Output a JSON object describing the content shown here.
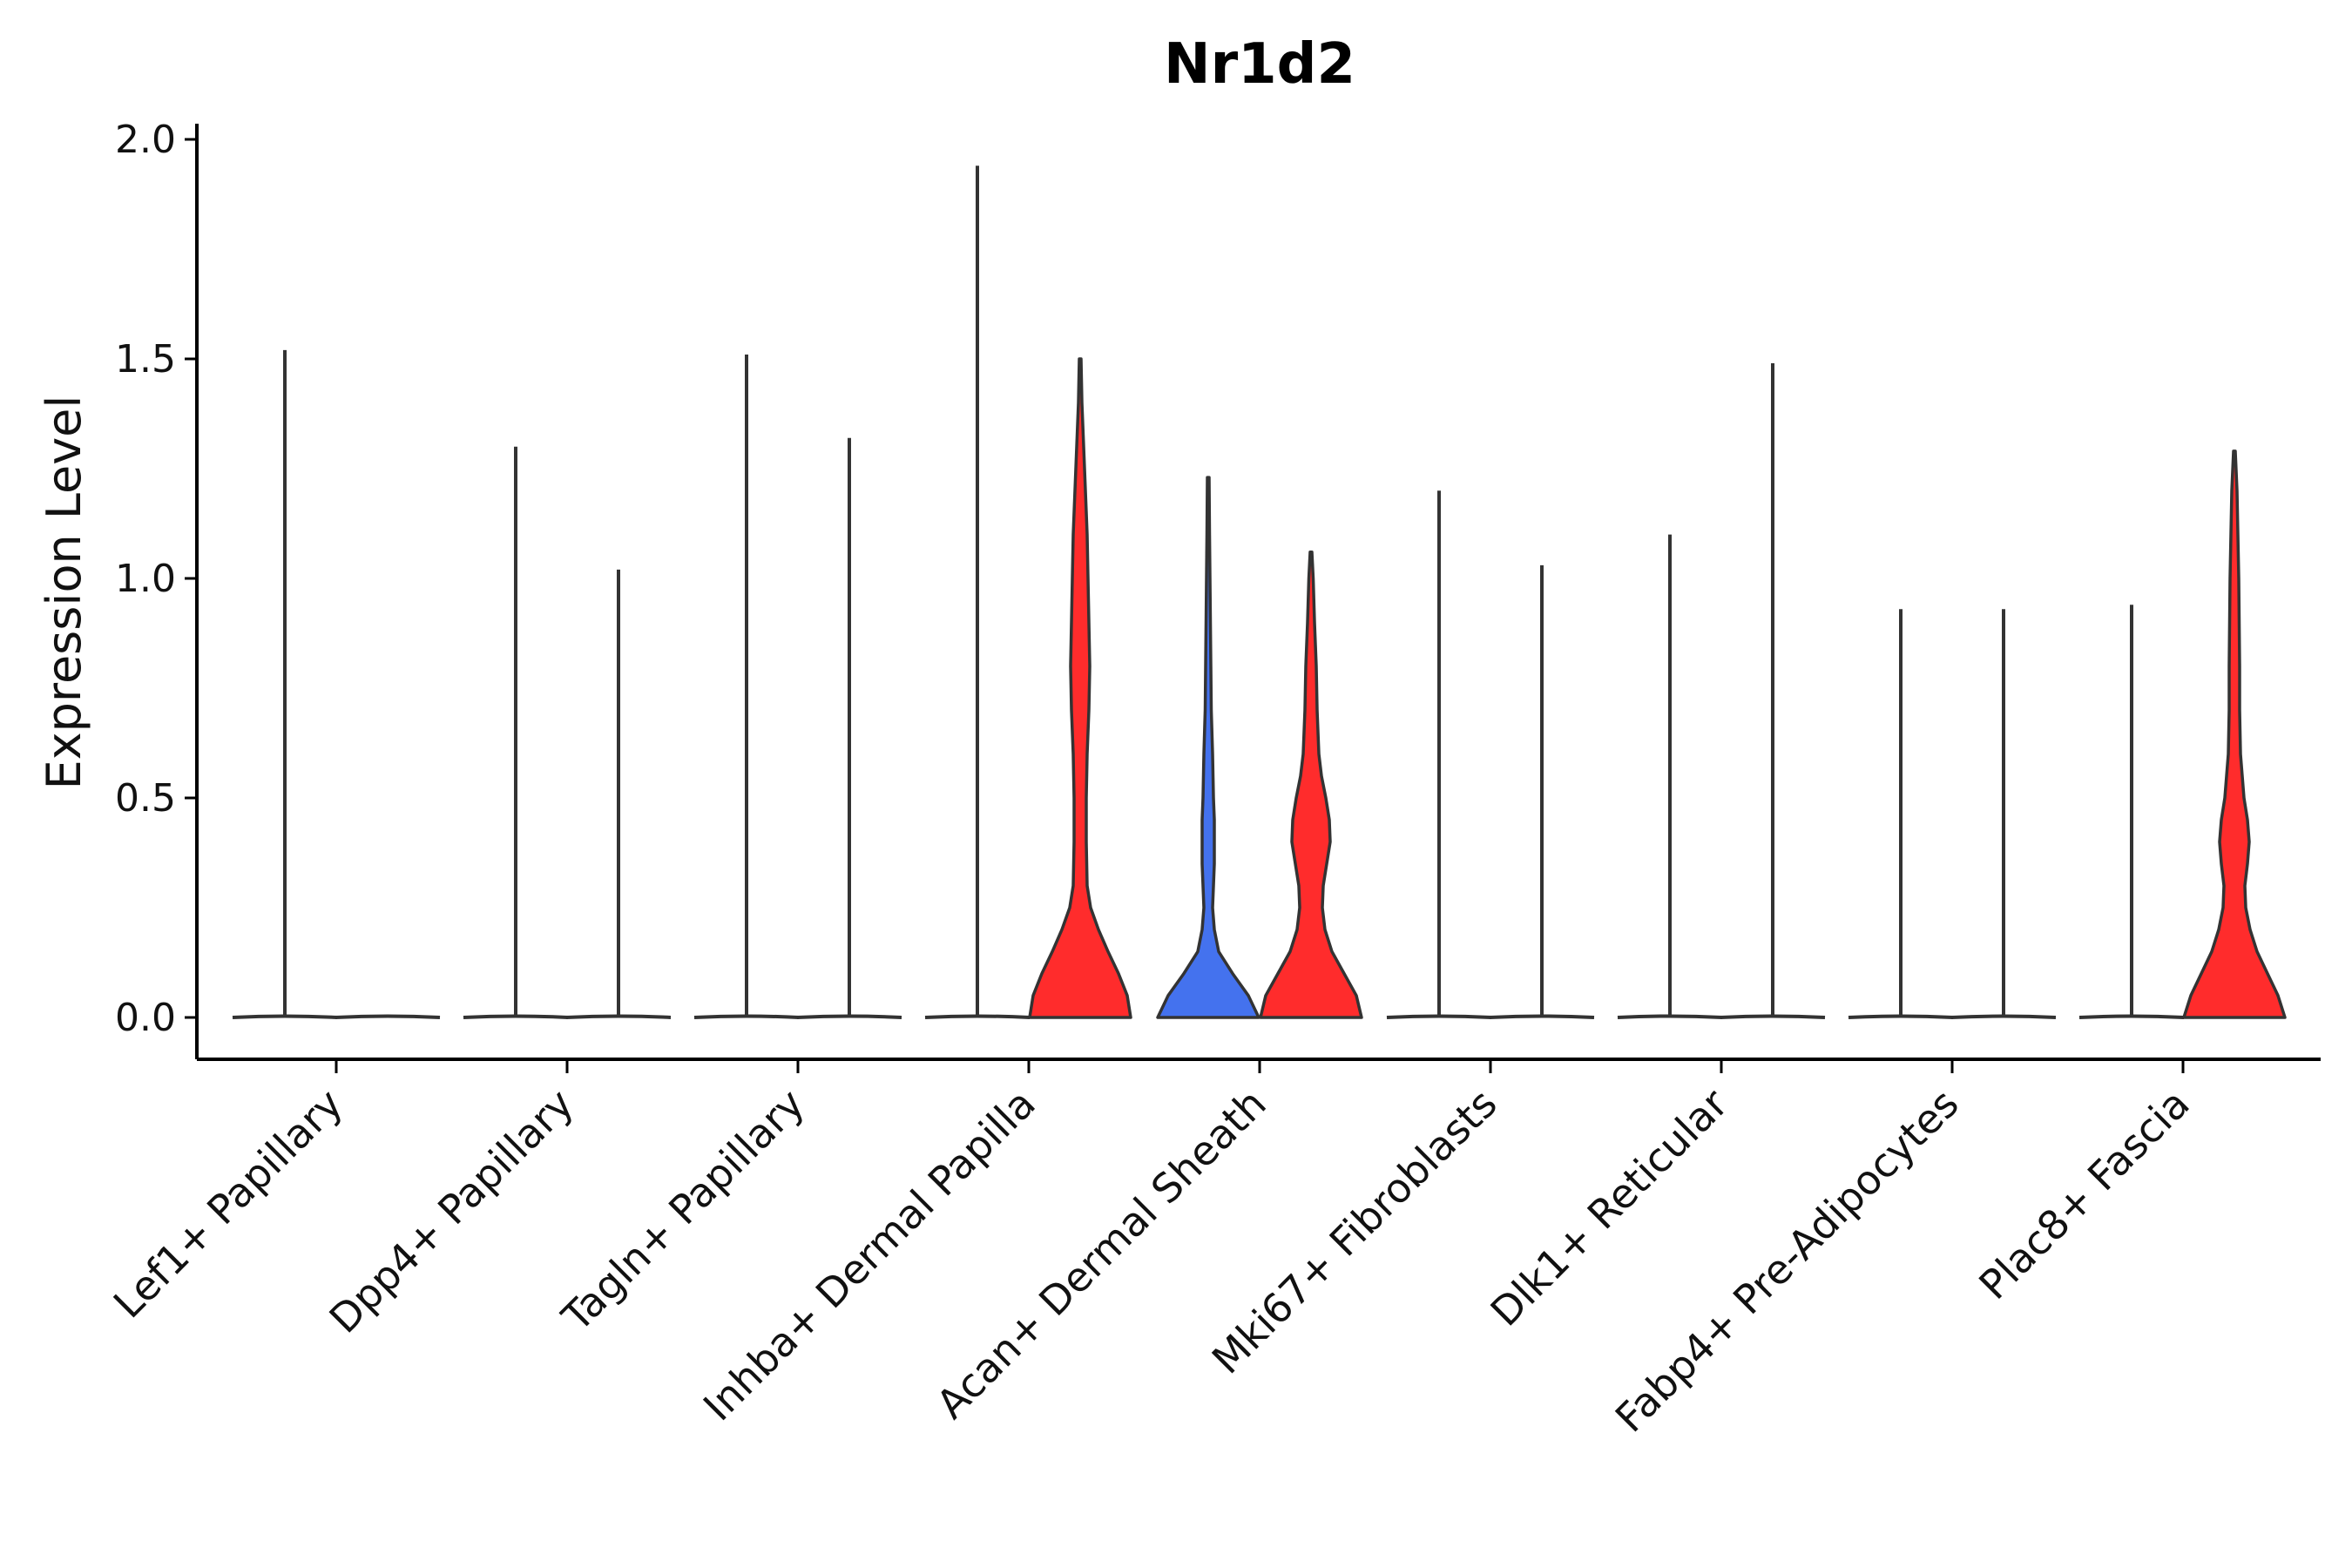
{
  "chart_data": {
    "type": "violin",
    "title": "Nr1d2",
    "xlabel": "",
    "ylabel": "Expression Level",
    "ylim": [
      -0.1,
      2.05
    ],
    "yticks": [
      0.0,
      0.5,
      1.0,
      1.5,
      2.0
    ],
    "ytick_labels": [
      "0.0",
      "0.5",
      "1.0",
      "1.5",
      "2.0"
    ],
    "categories": [
      "Lef1+ Papillary",
      "Dpp4+ Papillary",
      "Tagln+ Papillary",
      "Inhba+ Dermal Papilla",
      "Acan+ Dermal Sheath",
      "Mki67+ Fibroblasts",
      "Dlk1+ Reticular",
      "Fabp4+ Pre-Adipocytes",
      "Plac8+ Fascia"
    ],
    "colors": {
      "group_a": "#f8766d",
      "group_b": "#4472ee",
      "group_c": "#ff2c2c"
    },
    "violins": [
      {
        "category": "Lef1+ Papillary",
        "side": "left",
        "max": 1.52,
        "shape": "spike"
      },
      {
        "category": "Lef1+ Papillary",
        "side": "right",
        "max": 0.0,
        "shape": "flat"
      },
      {
        "category": "Dpp4+ Papillary",
        "side": "left",
        "max": 1.3,
        "shape": "spike"
      },
      {
        "category": "Dpp4+ Papillary",
        "side": "right",
        "max": 1.02,
        "shape": "spike"
      },
      {
        "category": "Tagln+ Papillary",
        "side": "left",
        "max": 1.51,
        "shape": "spike"
      },
      {
        "category": "Tagln+ Papillary",
        "side": "right",
        "max": 1.32,
        "shape": "spike"
      },
      {
        "category": "Inhba+ Dermal Papilla",
        "side": "left",
        "max": 1.94,
        "shape": "spike"
      },
      {
        "category": "Inhba+ Dermal Papilla",
        "side": "right",
        "max": 1.5,
        "shape": "full",
        "color": "#ff2c2c"
      },
      {
        "category": "Acan+ Dermal Sheath",
        "side": "left",
        "max": 1.23,
        "shape": "full",
        "color": "#4472ee"
      },
      {
        "category": "Acan+ Dermal Sheath",
        "side": "right",
        "max": 1.06,
        "shape": "full",
        "color": "#ff2c2c"
      },
      {
        "category": "Mki67+ Fibroblasts",
        "side": "left",
        "max": 1.2,
        "shape": "spike"
      },
      {
        "category": "Mki67+ Fibroblasts",
        "side": "right",
        "max": 1.03,
        "shape": "spike"
      },
      {
        "category": "Dlk1+ Reticular",
        "side": "left",
        "max": 1.1,
        "shape": "spike"
      },
      {
        "category": "Dlk1+ Reticular",
        "side": "right",
        "max": 1.49,
        "shape": "spike"
      },
      {
        "category": "Fabp4+ Pre-Adipocytes",
        "side": "left",
        "max": 0.93,
        "shape": "spike"
      },
      {
        "category": "Fabp4+ Pre-Adipocytes",
        "side": "right",
        "max": 0.93,
        "shape": "spike"
      },
      {
        "category": "Plac8+ Fascia",
        "side": "left",
        "max": 0.94,
        "shape": "spike"
      },
      {
        "category": "Plac8+ Fascia",
        "side": "right",
        "max": 1.29,
        "shape": "full",
        "color": "#ff2c2c"
      }
    ]
  }
}
